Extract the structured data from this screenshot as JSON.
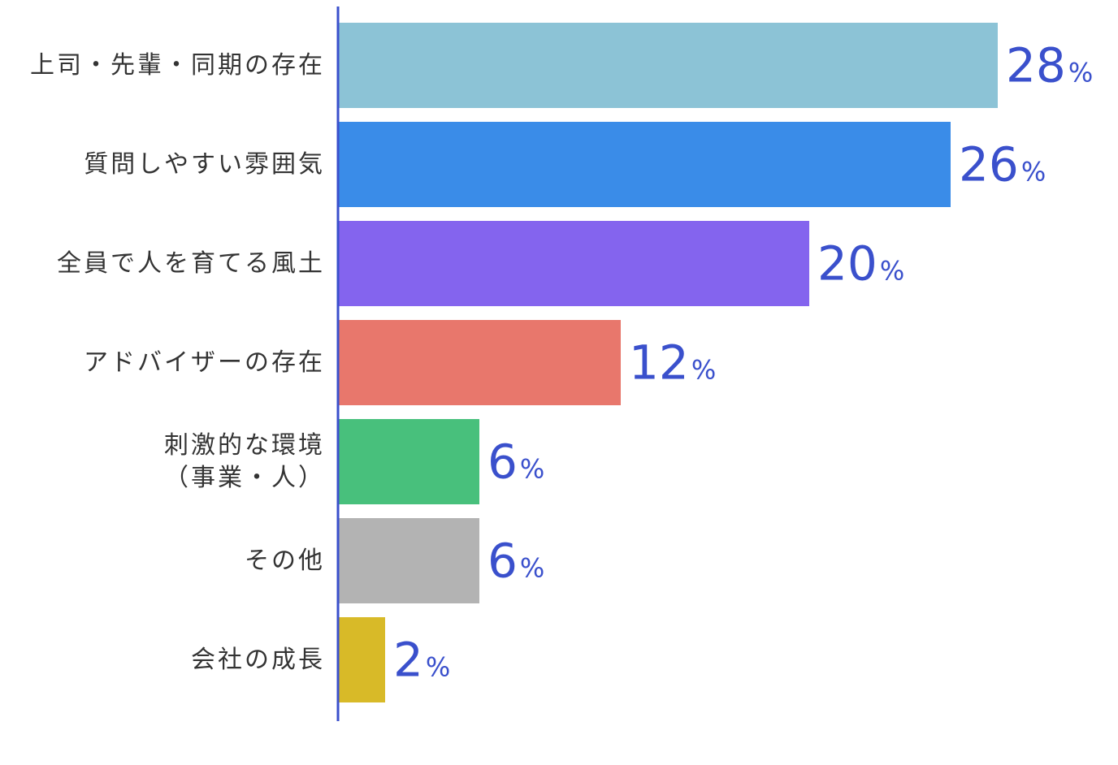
{
  "chart_data": {
    "type": "bar",
    "orientation": "horizontal",
    "categories": [
      [
        "上司・先輩・同期の存在"
      ],
      [
        "質問しやすい雰囲気"
      ],
      [
        "全員で人を育てる風土"
      ],
      [
        "アドバイザーの存在"
      ],
      [
        "刺激的な環境",
        "（事業・人）"
      ],
      [
        "その他"
      ],
      [
        "会社の成長"
      ]
    ],
    "values": [
      28,
      26,
      20,
      12,
      6,
      6,
      2
    ],
    "value_labels": [
      "28",
      "26",
      "20",
      "12",
      "6",
      "6",
      "2"
    ],
    "unit": "%",
    "bar_colors": [
      "#8cc3d6",
      "#3a8ce8",
      "#8464ee",
      "#e8776c",
      "#48c07c",
      "#b3b3b3",
      "#d8ba28"
    ],
    "axis_color": "#3a50cc",
    "value_label_color": "#3a50cc",
    "grid": false,
    "legend": "none"
  }
}
